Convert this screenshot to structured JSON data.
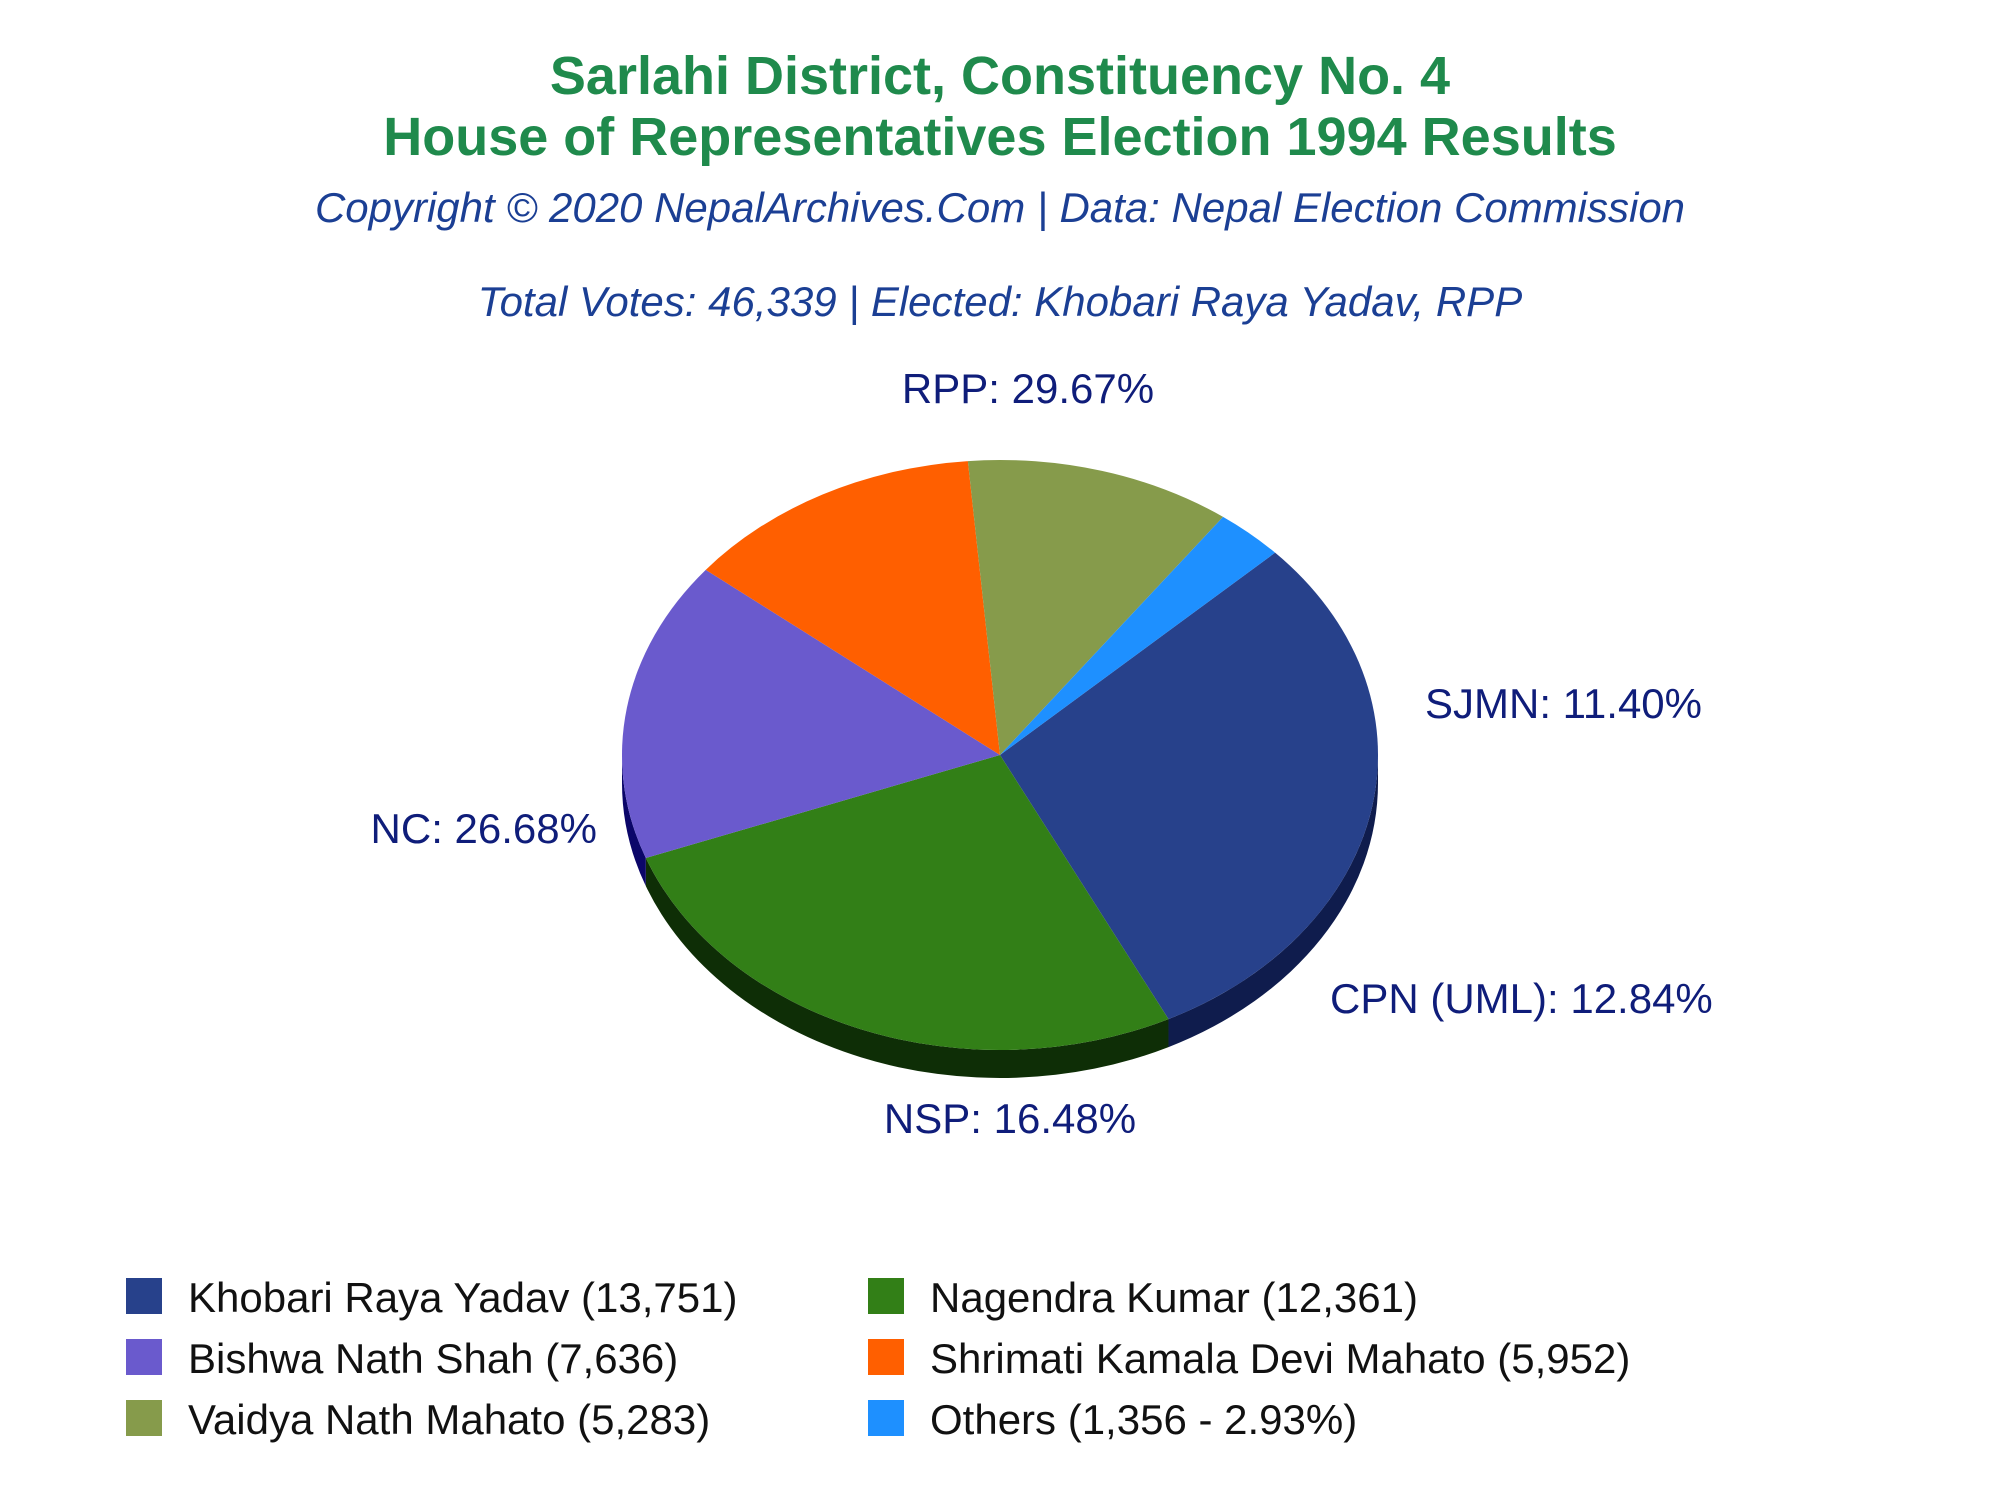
{
  "chart_data": {
    "type": "pie",
    "title": "Sarlahi District, Constituency No. 4",
    "subtitle": "House of Representatives Election 1994 Results",
    "copyright": "Copyright © 2020 NepalArchives.Com | Data: Nepal Election Commission",
    "summary": "Total Votes: 46,339 | Elected: Khobari Raya Yadav, RPP",
    "slices": [
      {
        "party_label": "RPP: 29.67%",
        "legend": "Khobari Raya Yadav (13,751)",
        "votes": 13751,
        "percent": 29.67,
        "color": "#27418b",
        "side_color": "#0f1c4d"
      },
      {
        "party_label": "NC: 26.68%",
        "legend": "Nagendra Kumar (12,361)",
        "votes": 12361,
        "percent": 26.68,
        "color": "#327f17",
        "side_color": "#0e2e06"
      },
      {
        "party_label": "NSP: 16.48%",
        "legend": "Bishwa Nath Shah (7,636)",
        "votes": 7636,
        "percent": 16.48,
        "color": "#6a5acd",
        "side_color": "#0b0669"
      },
      {
        "party_label": "CPN (UML): 12.84%",
        "legend": "Shrimati Kamala Devi Mahato (5,952)",
        "votes": 5952,
        "percent": 12.84,
        "color": "#ff5f00",
        "side_color": "#b00000"
      },
      {
        "party_label": "SJMN: 11.40%",
        "legend": "Vaidya Nath Mahato (5,283)",
        "votes": 5283,
        "percent": 11.4,
        "color": "#869b4b",
        "side_color": "#2b3a0d"
      },
      {
        "party_label": "",
        "legend": "Others (1,356 - 2.93%)",
        "votes": 1356,
        "percent": 2.93,
        "color": "#1e90ff",
        "side_color": "#0a4a8a"
      }
    ]
  }
}
